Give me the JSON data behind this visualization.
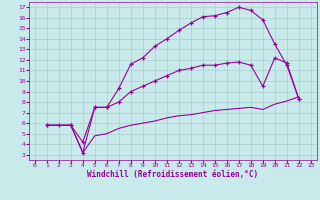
{
  "title": "",
  "xlabel": "Windchill (Refroidissement éolien,°C)",
  "ylabel": "",
  "bg_color": "#c8eaea",
  "line_color": "#990099",
  "grid_color": "#aacccc",
  "xlim": [
    -0.5,
    23.5
  ],
  "ylim": [
    2.5,
    17.5
  ],
  "xticks": [
    0,
    1,
    2,
    3,
    4,
    5,
    6,
    7,
    8,
    9,
    10,
    11,
    12,
    13,
    14,
    15,
    16,
    17,
    18,
    19,
    20,
    21,
    22,
    23
  ],
  "yticks": [
    3,
    4,
    5,
    6,
    7,
    8,
    9,
    10,
    11,
    12,
    13,
    14,
    15,
    16,
    17
  ],
  "line1_x": [
    1,
    2,
    3,
    4,
    5,
    6,
    7,
    8,
    9,
    10,
    11,
    12,
    13,
    14,
    15,
    16,
    17,
    18,
    19,
    20,
    21,
    22
  ],
  "line1_y": [
    5.8,
    5.8,
    5.8,
    4.2,
    7.5,
    7.5,
    9.3,
    11.6,
    12.2,
    13.3,
    14.0,
    14.8,
    15.5,
    16.1,
    16.2,
    16.5,
    17.0,
    16.7,
    15.8,
    13.5,
    11.5,
    8.3
  ],
  "line2_x": [
    1,
    3,
    4,
    5,
    6,
    7,
    8,
    9,
    10,
    11,
    12,
    13,
    14,
    15,
    16,
    17,
    18,
    19,
    20,
    21,
    22
  ],
  "line2_y": [
    5.8,
    5.8,
    3.2,
    7.5,
    7.5,
    8.0,
    9.0,
    9.5,
    10.0,
    10.5,
    11.0,
    11.2,
    11.5,
    11.5,
    11.7,
    11.8,
    11.5,
    9.5,
    12.2,
    11.7,
    8.3
  ],
  "line3_x": [
    1,
    3,
    4,
    5,
    6,
    7,
    8,
    9,
    10,
    11,
    12,
    13,
    14,
    15,
    16,
    17,
    18,
    19,
    20,
    21,
    22
  ],
  "line3_y": [
    5.8,
    5.8,
    3.2,
    4.8,
    5.0,
    5.5,
    5.8,
    6.0,
    6.2,
    6.5,
    6.7,
    6.8,
    7.0,
    7.2,
    7.3,
    7.4,
    7.5,
    7.3,
    7.8,
    8.1,
    8.5
  ]
}
